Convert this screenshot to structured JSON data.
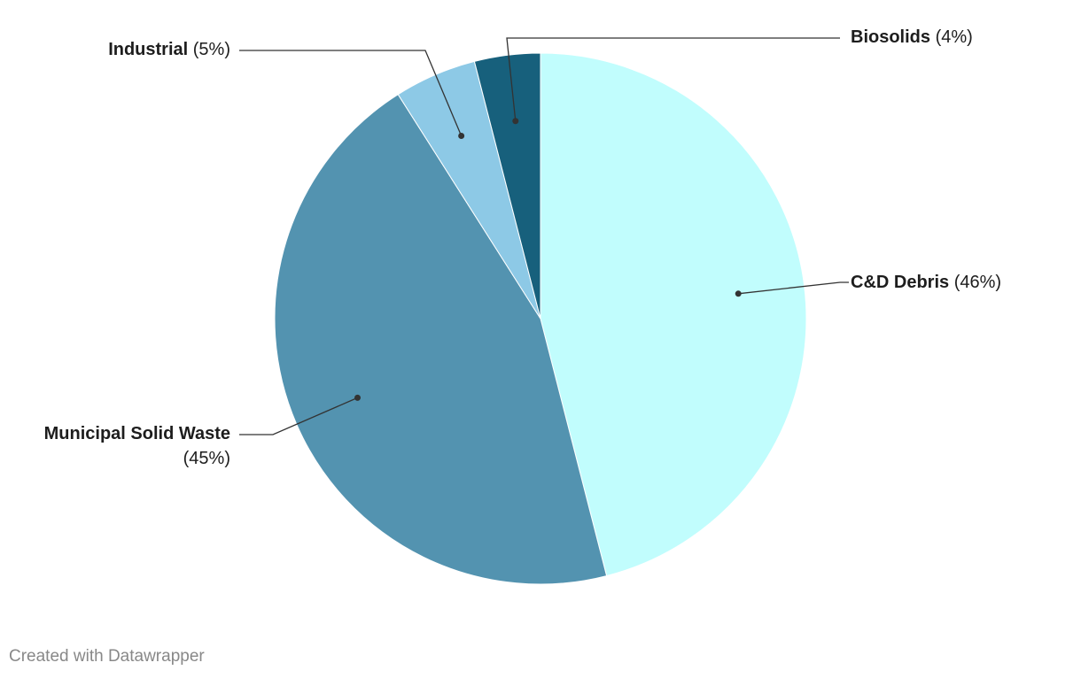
{
  "chart_data": {
    "type": "pie",
    "categories": [
      "C&D Debris",
      "Municipal Solid Waste",
      "Industrial",
      "Biosolids"
    ],
    "values": [
      46,
      45,
      5,
      4
    ],
    "value_labels": [
      "(46%)",
      "(45%)",
      "(5%)",
      "(4%)"
    ],
    "colors": [
      "#c1fdfd",
      "#5393b0",
      "#8dc9e6",
      "#17607c"
    ],
    "footer": "Created with Datawrapper"
  }
}
